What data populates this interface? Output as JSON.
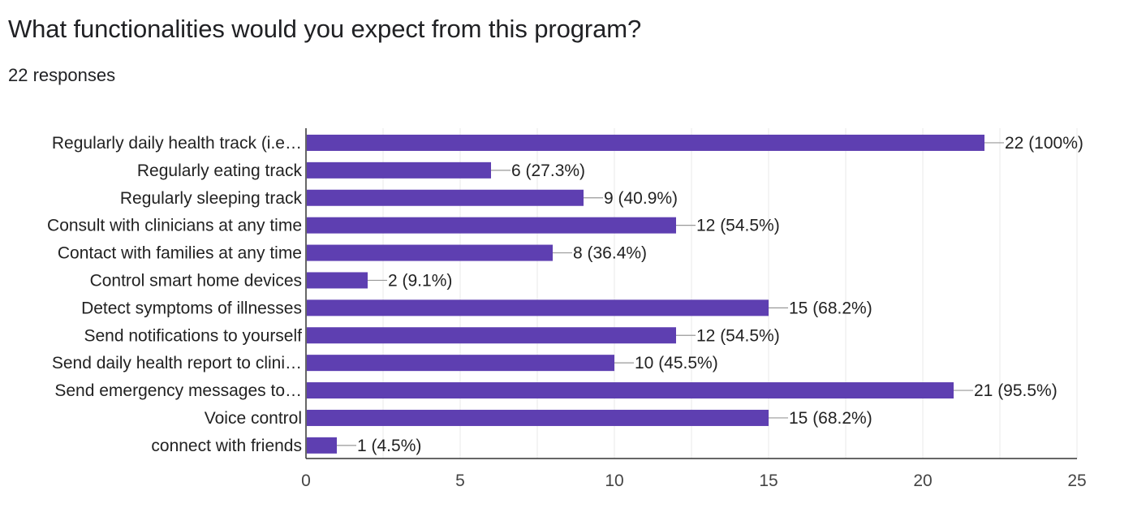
{
  "header": {
    "question": "What functionalities would you expect from this program?",
    "responses": "22 responses"
  },
  "colors": {
    "bar": "#5e3fb1",
    "grid": "#e8e8e8",
    "axis": "#333333",
    "leader": "#999999"
  },
  "chart_data": {
    "type": "bar",
    "orientation": "horizontal",
    "title": "What functionalities would you expect from this program?",
    "subtitle": "22 responses",
    "categories": [
      "Regularly daily health track (i.e…",
      "Regularly eating track",
      "Regularly sleeping track",
      "Consult with clinicians at any time",
      "Contact with families at any time",
      "Control smart home devices",
      "Detect symptoms of illnesses",
      "Send notifications to yourself",
      "Send daily health report to clini…",
      "Send emergency messages to…",
      "Voice control",
      "connect with friends"
    ],
    "values": [
      22,
      6,
      9,
      12,
      8,
      2,
      15,
      12,
      10,
      21,
      15,
      1
    ],
    "data_labels": [
      "22 (100%)",
      "6 (27.3%)",
      "9 (40.9%)",
      "12 (54.5%)",
      "8 (36.4%)",
      "2 (9.1%)",
      "15 (68.2%)",
      "12 (54.5%)",
      "10 (45.5%)",
      "21 (95.5%)",
      "15 (68.2%)",
      "1 (4.5%)"
    ],
    "xlim": [
      0,
      25
    ],
    "xticks": [
      0,
      5,
      10,
      15,
      20,
      25
    ],
    "xlabel": "",
    "ylabel": "",
    "grid": true
  }
}
